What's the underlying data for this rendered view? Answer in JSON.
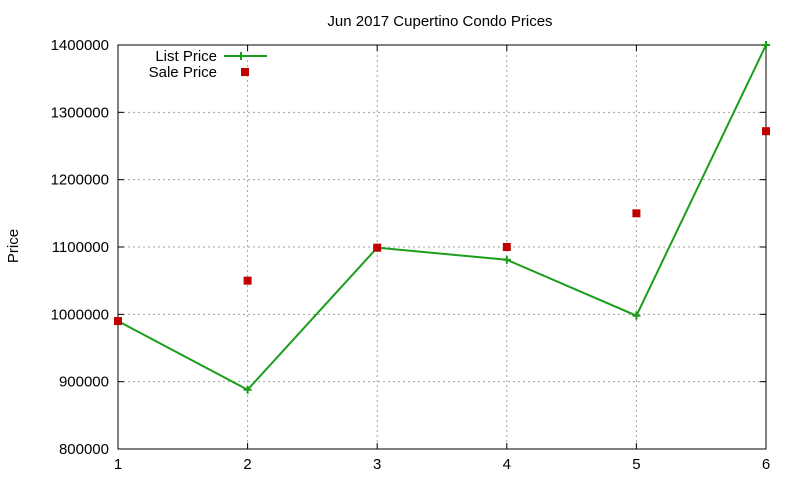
{
  "chart_data": {
    "type": "line",
    "title": "Jun 2017 Cupertino Condo Prices",
    "xlabel": "",
    "ylabel": "Price",
    "x": [
      1,
      2,
      3,
      4,
      5,
      6
    ],
    "xlim": [
      1,
      6
    ],
    "ylim": [
      800000,
      1400000
    ],
    "xticks": [
      "1",
      "2",
      "3",
      "4",
      "5",
      "6"
    ],
    "yticks": [
      "800000",
      "900000",
      "1000000",
      "1100000",
      "1200000",
      "1300000",
      "1400000"
    ],
    "grid": true,
    "legend_position": "top-left",
    "series": [
      {
        "name": "List Price",
        "style": "line-plus",
        "color": "#1a9e1a",
        "values": [
          990000,
          888000,
          1099000,
          1081000,
          998000,
          1400000
        ]
      },
      {
        "name": "Sale Price",
        "style": "square-points",
        "color": "#c00000",
        "values": [
          990000,
          1050000,
          1099000,
          1100000,
          1150000,
          1272000
        ]
      }
    ]
  }
}
